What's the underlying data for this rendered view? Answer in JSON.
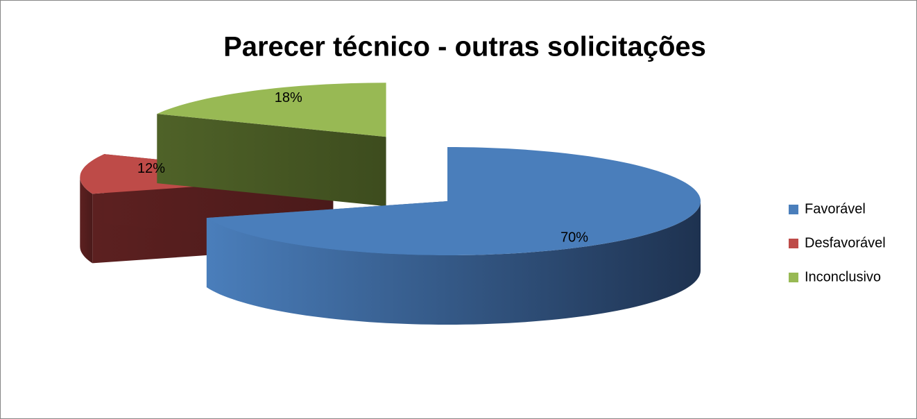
{
  "chart_data": {
    "type": "pie",
    "title": "Parecer técnico - outras solicitações",
    "categories": [
      "Favorável",
      "Desfavorável",
      "Inconclusivo"
    ],
    "values": [
      70,
      12,
      18
    ],
    "value_labels": [
      "70%",
      "12%",
      "18%"
    ],
    "colors": [
      "#4a7ebb",
      "#be4b48",
      "#98b954"
    ],
    "legend": "right"
  }
}
